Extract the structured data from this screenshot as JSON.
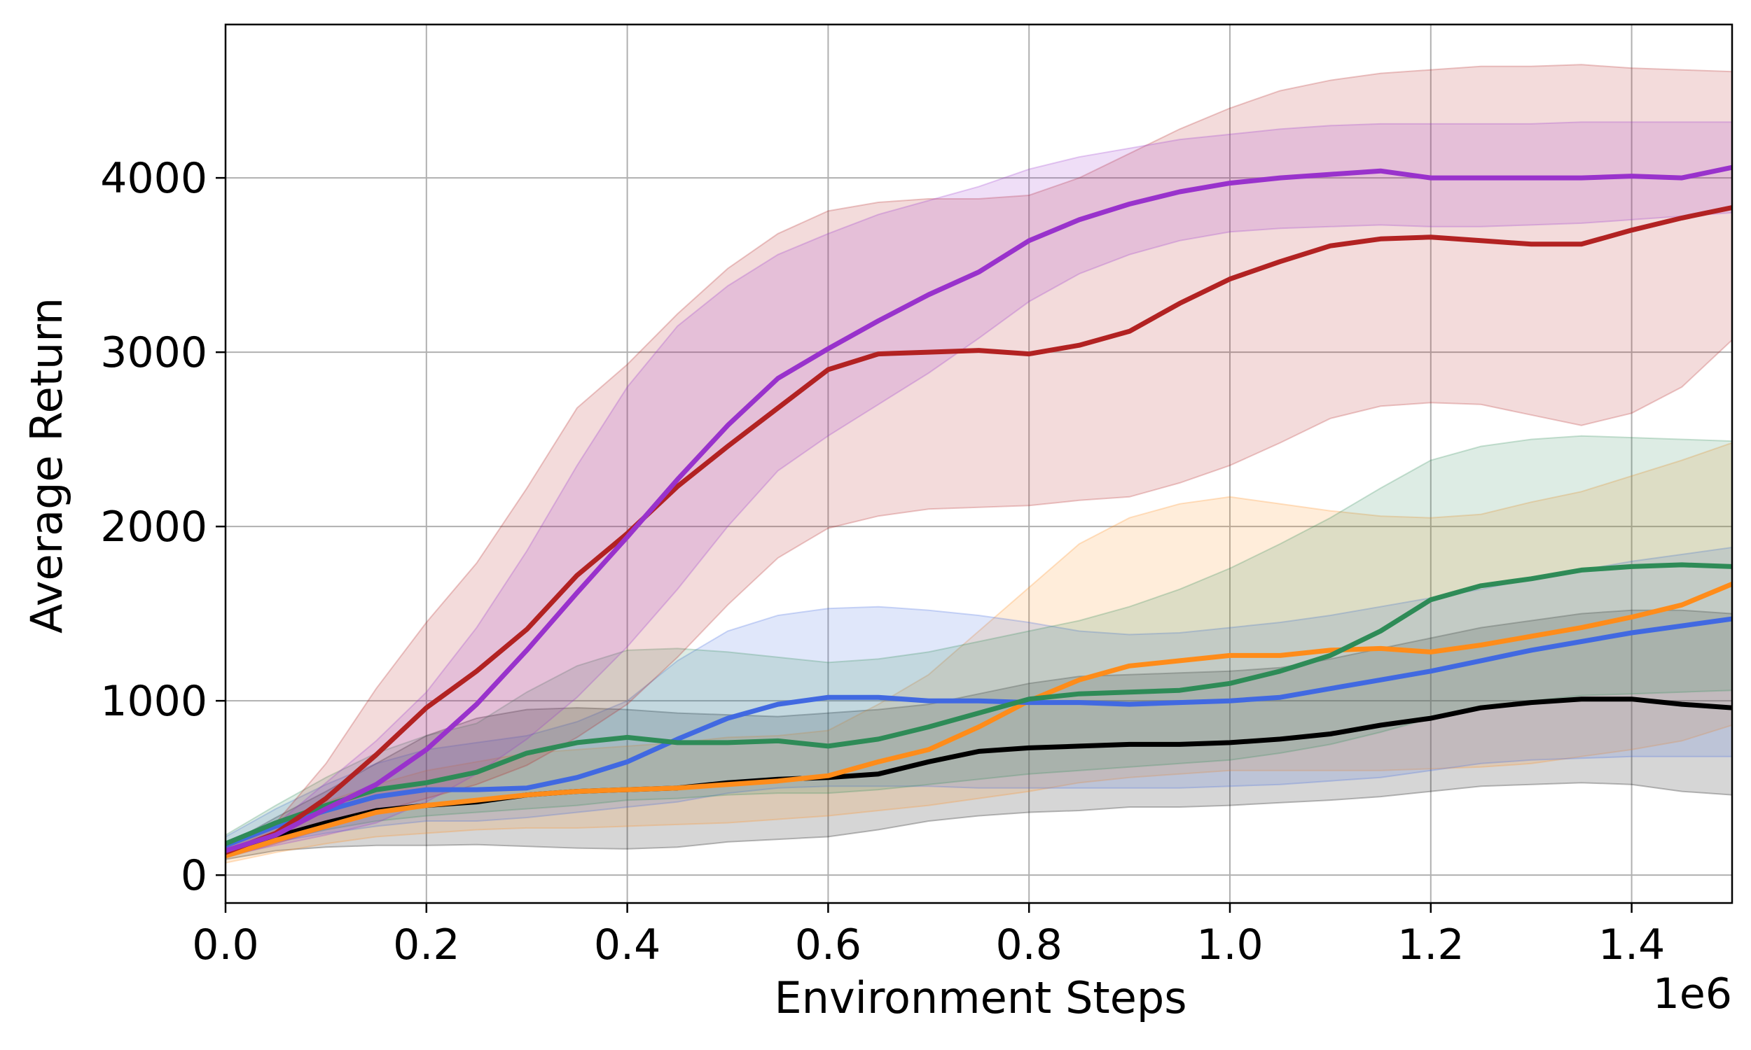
{
  "chart_data": {
    "type": "line",
    "title": "",
    "xlabel": "Environment Steps",
    "ylabel": "Average Return",
    "x_offset_text": "1e6",
    "x_scale": 1000000,
    "xlim": [
      0,
      1500000
    ],
    "ylim": [
      -160,
      4880
    ],
    "grid": true,
    "legend": "none",
    "x_ticks": [
      0,
      200000,
      400000,
      600000,
      800000,
      1000000,
      1200000,
      1400000
    ],
    "x_tick_labels": [
      "0.0",
      "0.2",
      "0.4",
      "0.6",
      "0.8",
      "1.0",
      "1.2",
      "1.4"
    ],
    "y_ticks": [
      0,
      1000,
      2000,
      3000,
      4000
    ],
    "y_tick_labels": [
      "0",
      "1000",
      "2000",
      "3000",
      "4000"
    ],
    "x": [
      0,
      50000,
      100000,
      150000,
      200000,
      250000,
      300000,
      350000,
      400000,
      450000,
      500000,
      550000,
      600000,
      650000,
      700000,
      750000,
      800000,
      850000,
      900000,
      950000,
      1000000,
      1050000,
      1100000,
      1150000,
      1200000,
      1250000,
      1300000,
      1350000,
      1400000,
      1450000,
      1500000
    ],
    "series": [
      {
        "name": "black",
        "color": "#000000",
        "mean": [
          130,
          220,
          300,
          370,
          400,
          420,
          460,
          480,
          490,
          500,
          530,
          550,
          560,
          580,
          650,
          710,
          730,
          740,
          750,
          750,
          760,
          780,
          810,
          860,
          900,
          960,
          990,
          1010,
          1010,
          980,
          960
        ],
        "lower": [
          90,
          140,
          160,
          170,
          170,
          175,
          165,
          155,
          150,
          160,
          190,
          205,
          220,
          260,
          310,
          340,
          360,
          370,
          390,
          390,
          400,
          415,
          430,
          450,
          480,
          510,
          520,
          530,
          520,
          480,
          460
        ],
        "upper": [
          170,
          330,
          480,
          640,
          800,
          900,
          950,
          960,
          950,
          930,
          920,
          910,
          930,
          950,
          980,
          1040,
          1100,
          1140,
          1150,
          1160,
          1170,
          1190,
          1240,
          1300,
          1360,
          1420,
          1460,
          1500,
          1520,
          1520,
          1500
        ]
      },
      {
        "name": "orange",
        "color": "#ff8c1a",
        "mean": [
          110,
          200,
          280,
          360,
          400,
          430,
          460,
          480,
          490,
          500,
          520,
          540,
          570,
          650,
          720,
          850,
          1000,
          1120,
          1200,
          1230,
          1260,
          1260,
          1290,
          1300,
          1280,
          1320,
          1370,
          1420,
          1480,
          1550,
          1670
        ],
        "lower": [
          70,
          130,
          180,
          220,
          240,
          260,
          270,
          270,
          280,
          290,
          300,
          320,
          340,
          370,
          400,
          440,
          480,
          530,
          560,
          580,
          600,
          600,
          600,
          600,
          610,
          620,
          640,
          680,
          720,
          770,
          860
        ],
        "upper": [
          160,
          300,
          420,
          520,
          600,
          650,
          700,
          720,
          740,
          760,
          790,
          800,
          830,
          980,
          1150,
          1400,
          1650,
          1900,
          2050,
          2130,
          2170,
          2130,
          2090,
          2060,
          2050,
          2070,
          2140,
          2200,
          2290,
          2380,
          2480
        ]
      },
      {
        "name": "blue",
        "color": "#4169e1",
        "mean": [
          170,
          280,
          370,
          450,
          490,
          490,
          500,
          560,
          650,
          780,
          900,
          980,
          1020,
          1020,
          1000,
          1000,
          990,
          990,
          980,
          990,
          1000,
          1020,
          1070,
          1120,
          1170,
          1230,
          1290,
          1340,
          1390,
          1430,
          1470
        ],
        "lower": [
          120,
          190,
          240,
          280,
          310,
          310,
          330,
          360,
          390,
          420,
          470,
          500,
          510,
          510,
          510,
          500,
          500,
          500,
          500,
          500,
          510,
          520,
          540,
          560,
          600,
          640,
          660,
          670,
          680,
          680,
          680
        ],
        "upper": [
          220,
          380,
          520,
          640,
          720,
          760,
          800,
          880,
          1000,
          1230,
          1400,
          1490,
          1530,
          1540,
          1520,
          1490,
          1450,
          1400,
          1380,
          1390,
          1420,
          1450,
          1490,
          1540,
          1590,
          1640,
          1700,
          1750,
          1800,
          1840,
          1880
        ]
      },
      {
        "name": "green",
        "color": "#2e8b57",
        "mean": [
          180,
          300,
          400,
          490,
          530,
          590,
          700,
          760,
          790,
          760,
          760,
          770,
          740,
          780,
          850,
          930,
          1010,
          1040,
          1050,
          1060,
          1100,
          1170,
          1260,
          1400,
          1580,
          1660,
          1700,
          1750,
          1770,
          1780,
          1770
        ],
        "lower": [
          130,
          200,
          260,
          310,
          340,
          360,
          380,
          400,
          430,
          440,
          460,
          470,
          470,
          490,
          520,
          550,
          580,
          600,
          620,
          640,
          660,
          700,
          750,
          820,
          900,
          960,
          1000,
          1030,
          1040,
          1050,
          1060
        ],
        "upper": [
          230,
          400,
          560,
          700,
          800,
          870,
          1050,
          1200,
          1290,
          1300,
          1280,
          1250,
          1220,
          1240,
          1280,
          1340,
          1400,
          1460,
          1540,
          1640,
          1760,
          1900,
          2050,
          2220,
          2380,
          2460,
          2500,
          2520,
          2510,
          2500,
          2490
        ]
      },
      {
        "name": "red",
        "color": "#b22222",
        "mean": [
          130,
          240,
          440,
          690,
          960,
          1170,
          1410,
          1720,
          1960,
          2230,
          2460,
          2680,
          2900,
          2990,
          3000,
          3010,
          2990,
          3040,
          3120,
          3280,
          3420,
          3520,
          3610,
          3650,
          3660,
          3640,
          3620,
          3620,
          3700,
          3770,
          3830
        ],
        "lower": [
          100,
          180,
          270,
          360,
          440,
          520,
          630,
          790,
          980,
          1250,
          1550,
          1820,
          1990,
          2060,
          2100,
          2110,
          2120,
          2150,
          2170,
          2250,
          2350,
          2480,
          2620,
          2690,
          2710,
          2700,
          2640,
          2580,
          2650,
          2800,
          3070
        ],
        "upper": [
          170,
          300,
          640,
          1070,
          1450,
          1790,
          2220,
          2680,
          2930,
          3220,
          3480,
          3680,
          3810,
          3860,
          3880,
          3880,
          3900,
          4000,
          4140,
          4280,
          4400,
          4500,
          4560,
          4600,
          4620,
          4640,
          4640,
          4650,
          4630,
          4620,
          4610
        ]
      },
      {
        "name": "purple",
        "color": "#9932cc",
        "mean": [
          140,
          230,
          380,
          520,
          720,
          980,
          1290,
          1620,
          1940,
          2270,
          2580,
          2850,
          3020,
          3180,
          3330,
          3460,
          3640,
          3760,
          3850,
          3920,
          3970,
          4000,
          4020,
          4040,
          4000,
          4000,
          4000,
          4000,
          4010,
          4000,
          4060
        ],
        "lower": [
          110,
          170,
          230,
          300,
          420,
          580,
          780,
          1020,
          1310,
          1640,
          2000,
          2320,
          2520,
          2700,
          2880,
          3080,
          3290,
          3450,
          3560,
          3640,
          3690,
          3710,
          3720,
          3730,
          3720,
          3720,
          3730,
          3740,
          3760,
          3780,
          3800
        ],
        "upper": [
          180,
          290,
          530,
          770,
          1050,
          1420,
          1860,
          2350,
          2800,
          3150,
          3380,
          3560,
          3680,
          3790,
          3870,
          3950,
          4050,
          4120,
          4170,
          4220,
          4250,
          4280,
          4300,
          4310,
          4310,
          4310,
          4310,
          4320,
          4320,
          4320,
          4320
        ]
      }
    ]
  }
}
